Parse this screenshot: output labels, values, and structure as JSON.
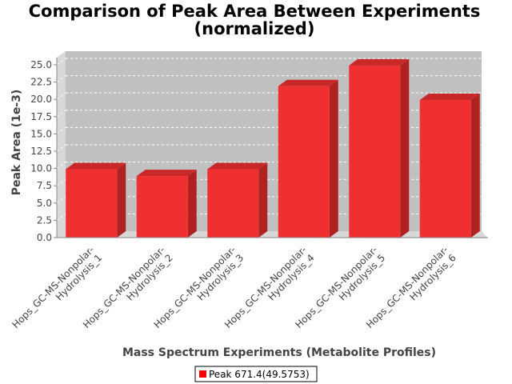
{
  "chart_data": {
    "type": "bar",
    "title_line1": "Comparison of Peak Area Between Experiments",
    "title_line2": "(normalized)",
    "xlabel": "Mass Spectrum Experiments (Metabolite Profiles)",
    "ylabel": "Peak Area (1e-3)",
    "categories": [
      [
        "Hops_GC-MS-Nonpolar-",
        "Hydrolysis_1"
      ],
      [
        "Hops_GC-MS-Nonpolar-",
        "Hydrolysis_2"
      ],
      [
        "Hops_GC-MS-Nonpolar-",
        "Hydrolysis_3"
      ],
      [
        "Hops_GC-MS-Nonpolar-",
        "Hydrolysis_4"
      ],
      [
        "Hops_GC-MS-Nonpolar-",
        "Hydrolysis_5"
      ],
      [
        "Hops_GC-MS-Nonpolar-",
        "Hydrolysis_6"
      ]
    ],
    "series": [
      {
        "name": "Peak 671.4(49.5753)",
        "values": [
          9.9,
          8.9,
          9.9,
          21.9,
          24.9,
          19.9
        ]
      }
    ],
    "ylim": [
      0,
      26.5
    ],
    "yticks": [
      0.0,
      2.5,
      5.0,
      7.5,
      10.0,
      12.5,
      15.0,
      17.5,
      20.0,
      22.5,
      25.0
    ],
    "ytick_labels": [
      "0.0",
      "2.5",
      "5.0",
      "7.5",
      "10.0",
      "12.5",
      "15.0",
      "17.5",
      "20.0",
      "22.5",
      "25.0"
    ],
    "grid": true,
    "legend_position": "bottom-center",
    "colors": {
      "bar_front": "#f03030",
      "bar_top": "#c82828",
      "bar_side": "#b02222",
      "plot_bg": "#c0c0c0",
      "wall": "#d8d8d8",
      "gridline": "#ffffff"
    }
  }
}
